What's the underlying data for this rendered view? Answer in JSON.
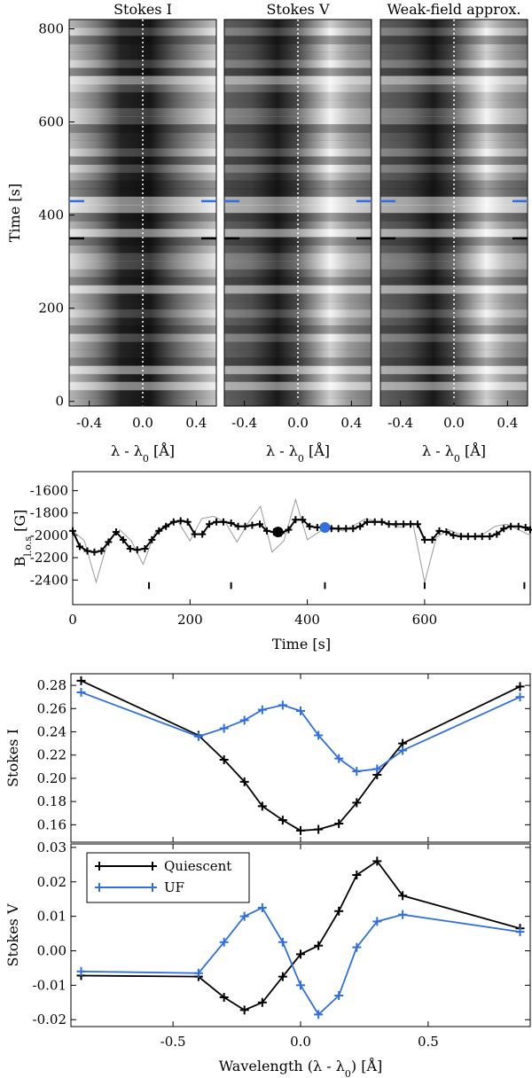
{
  "chart_data": [
    {
      "type": "heatmap",
      "panels": [
        {
          "title": "Stokes I"
        },
        {
          "title": "Stokes V"
        },
        {
          "title": "Weak-field approx."
        }
      ],
      "xlabel": "λ - λ0 [Å]",
      "ylabel": "Time [s]",
      "xticks": [
        -0.4,
        0.0,
        0.4
      ],
      "yticks": [
        0,
        200,
        400,
        600,
        800
      ],
      "xlim": [
        -0.55,
        0.55
      ],
      "ylim": [
        -10,
        820
      ],
      "markers": [
        {
          "time": 430,
          "color": "#2f6fe0"
        },
        {
          "time": 350,
          "color": "#000000"
        }
      ],
      "center_line": {
        "x": 0.0,
        "style": "dotted",
        "color": "#ffffff"
      }
    },
    {
      "type": "line",
      "xlabel": "Time [s]",
      "ylabel": "B l.o.s [G]",
      "xlim": [
        0,
        780
      ],
      "ylim": [
        -2620,
        -1430
      ],
      "xticks": [
        0,
        200,
        400,
        600
      ],
      "yticks": [
        -1600,
        -1800,
        -2000,
        -2200,
        -2400
      ],
      "series": [
        {
          "color": "#999999",
          "x": [
            0,
            20,
            40,
            60,
            80,
            100,
            120,
            140,
            160,
            180,
            200,
            220,
            240,
            260,
            280,
            300,
            320,
            340,
            360,
            380,
            400,
            420,
            440,
            460,
            480,
            500,
            520,
            540,
            560,
            580,
            600,
            620,
            640,
            660,
            680,
            700,
            720,
            740,
            760,
            780
          ],
          "y": [
            -1960,
            -2050,
            -2420,
            -2050,
            -1950,
            -2050,
            -2260,
            -1980,
            -1900,
            -1880,
            -2050,
            -1850,
            -1830,
            -1880,
            -2060,
            -1880,
            -1740,
            -2150,
            -2050,
            -1680,
            -2040,
            -1970,
            -1920,
            -1960,
            -1910,
            -1850,
            -1880,
            -1900,
            -1930,
            -1890,
            -2420,
            -2020,
            -1950,
            -1990,
            -2010,
            -1990,
            -1920,
            -1900,
            -1950,
            -2000
          ]
        },
        {
          "color": "#000000",
          "x": [
            0,
            12,
            25,
            37,
            49,
            61,
            74,
            86,
            98,
            110,
            123,
            135,
            147,
            159,
            172,
            184,
            196,
            208,
            221,
            233,
            245,
            257,
            270,
            282,
            294,
            306,
            319,
            331,
            343,
            355,
            368,
            380,
            392,
            404,
            417,
            429,
            441,
            453,
            466,
            478,
            490,
            502,
            515,
            527,
            539,
            551,
            564,
            576,
            588,
            600,
            613,
            625,
            637,
            649,
            662,
            674,
            686,
            698,
            711,
            723,
            735,
            747,
            760,
            772,
            780
          ],
          "y": [
            -1960,
            -2100,
            -2140,
            -2150,
            -2140,
            -2060,
            -1970,
            -2040,
            -2120,
            -2130,
            -2120,
            -2040,
            -1960,
            -1920,
            -1880,
            -1870,
            -1880,
            -1990,
            -1990,
            -1900,
            -1880,
            -1880,
            -1890,
            -1920,
            -1920,
            -1910,
            -1900,
            -1960,
            -1970,
            -1980,
            -1950,
            -1860,
            -1860,
            -1920,
            -1930,
            -1920,
            -1940,
            -1940,
            -1940,
            -1940,
            -1920,
            -1880,
            -1880,
            -1880,
            -1900,
            -1900,
            -1900,
            -1900,
            -1900,
            -2040,
            -2040,
            -1960,
            -1970,
            -2000,
            -2010,
            -2010,
            -2010,
            -2010,
            -2010,
            -1990,
            -1940,
            -1920,
            -1920,
            -1930,
            -1950
          ]
        }
      ],
      "points": [
        {
          "x": 350,
          "y": -1970,
          "color": "#000000"
        },
        {
          "x": 430,
          "y": -1930,
          "color": "#2f6fe0"
        }
      ],
      "tick_marks_x": [
        130,
        270,
        430,
        600,
        770
      ]
    },
    {
      "type": "line",
      "xlabel": "",
      "ylabel": "Stokes I",
      "xlim": [
        -0.9,
        0.9
      ],
      "ylim": [
        0.145,
        0.29
      ],
      "yticks": [
        0.16,
        0.18,
        0.2,
        0.22,
        0.24,
        0.26,
        0.28
      ],
      "series": [
        {
          "name": "Quiescent",
          "color": "#000000",
          "x": [
            -0.86,
            -0.4,
            -0.3,
            -0.22,
            -0.15,
            -0.07,
            0.0,
            0.07,
            0.15,
            0.22,
            0.3,
            0.4,
            0.86
          ],
          "y": [
            0.284,
            0.237,
            0.216,
            0.197,
            0.176,
            0.164,
            0.155,
            0.156,
            0.161,
            0.179,
            0.203,
            0.23,
            0.279
          ]
        },
        {
          "name": "UF",
          "color": "#2f6fe0",
          "x": [
            -0.86,
            -0.4,
            -0.3,
            -0.22,
            -0.15,
            -0.07,
            0.0,
            0.07,
            0.15,
            0.22,
            0.3,
            0.4,
            0.86
          ],
          "y": [
            0.274,
            0.236,
            0.243,
            0.25,
            0.259,
            0.263,
            0.258,
            0.237,
            0.217,
            0.206,
            0.208,
            0.224,
            0.27
          ]
        }
      ]
    },
    {
      "type": "line",
      "xlabel": "Wavelength (λ - λ0) [Å]",
      "ylabel": "Stokes V",
      "xlim": [
        -0.9,
        0.9
      ],
      "ylim": [
        -0.022,
        0.031
      ],
      "xticks": [
        -0.5,
        0.0,
        0.5
      ],
      "yticks": [
        -0.02,
        -0.01,
        0.0,
        0.01,
        0.02,
        0.03
      ],
      "legend": {
        "placement": "top-left",
        "entries": [
          "Quiescent",
          "UF"
        ]
      },
      "series": [
        {
          "name": "Quiescent",
          "color": "#000000",
          "x": [
            -0.86,
            -0.4,
            -0.3,
            -0.22,
            -0.15,
            -0.07,
            0.0,
            0.07,
            0.15,
            0.22,
            0.3,
            0.4,
            0.86
          ],
          "y": [
            -0.0072,
            -0.0075,
            -0.0135,
            -0.0172,
            -0.015,
            -0.0075,
            -0.001,
            0.0015,
            0.0115,
            0.022,
            0.026,
            0.016,
            0.0065
          ]
        },
        {
          "name": "UF",
          "color": "#2f6fe0",
          "x": [
            -0.86,
            -0.4,
            -0.3,
            -0.22,
            -0.15,
            -0.07,
            0.0,
            0.07,
            0.15,
            0.22,
            0.3,
            0.4,
            0.86
          ],
          "y": [
            -0.006,
            -0.0065,
            0.0025,
            0.01,
            0.0125,
            0.0025,
            -0.01,
            -0.0185,
            -0.013,
            0.001,
            0.0085,
            0.0105,
            0.0055
          ]
        }
      ]
    }
  ]
}
